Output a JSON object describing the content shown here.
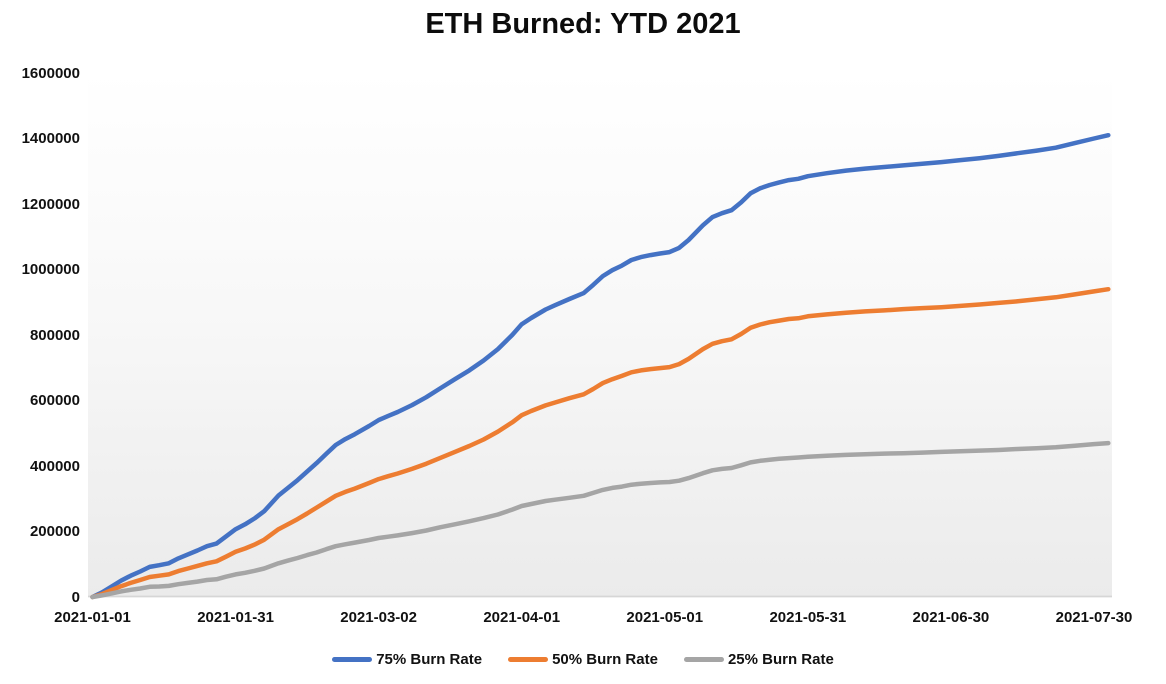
{
  "chart_data": {
    "type": "line",
    "title": "ETH Burned: YTD 2021",
    "xlabel": "",
    "ylabel": "",
    "grid": false,
    "legend_position": "bottom",
    "ylim": [
      0,
      1600000
    ],
    "y_ticks": [
      0,
      200000,
      400000,
      600000,
      800000,
      1000000,
      1200000,
      1400000,
      1600000
    ],
    "y_tick_labels": [
      "0",
      "200000",
      "400000",
      "600000",
      "800000",
      "1000000",
      "1200000",
      "1400000",
      "1600000"
    ],
    "x_ticks": [
      {
        "label": "2021-01-01",
        "day": 0
      },
      {
        "label": "2021-01-31",
        "day": 30
      },
      {
        "label": "2021-03-02",
        "day": 60
      },
      {
        "label": "2021-04-01",
        "day": 90
      },
      {
        "label": "2021-05-01",
        "day": 120
      },
      {
        "label": "2021-05-31",
        "day": 150
      },
      {
        "label": "2021-06-30",
        "day": 180
      },
      {
        "label": "2021-07-30",
        "day": 210
      }
    ],
    "x_domain_days": [
      0,
      213
    ],
    "days": [
      0,
      2,
      4,
      6,
      8,
      10,
      12,
      14,
      16,
      18,
      20,
      22,
      24,
      26,
      28,
      30,
      32,
      34,
      36,
      39,
      41,
      43,
      45,
      47,
      49,
      51,
      53,
      55,
      58,
      60,
      62,
      64,
      67,
      70,
      73,
      76,
      79,
      82,
      85,
      88,
      90,
      92,
      95,
      97,
      100,
      103,
      105,
      107,
      109,
      111,
      113,
      115,
      117,
      119,
      121,
      123,
      125,
      128,
      130,
      132,
      134,
      136,
      138,
      140,
      142,
      144,
      146,
      148,
      150,
      154,
      158,
      162,
      166,
      170,
      174,
      178,
      182,
      186,
      190,
      194,
      198,
      202,
      206,
      210,
      213
    ],
    "series": [
      {
        "name": "75% Burn Rate",
        "color": "#4472C4",
        "values": [
          0,
          14000,
          32000,
          50000,
          65000,
          78000,
          92000,
          97000,
          103000,
          118000,
          130000,
          142000,
          155000,
          163000,
          185000,
          207000,
          222000,
          240000,
          262000,
          310000,
          333000,
          357000,
          383000,
          409000,
          437000,
          464000,
          482000,
          497000,
          522000,
          540000,
          553000,
          565000,
          586000,
          610000,
          638000,
          665000,
          692000,
          722000,
          757000,
          800000,
          833000,
          852000,
          878000,
          891000,
          910000,
          928000,
          953000,
          980000,
          998000,
          1012000,
          1029000,
          1038000,
          1044000,
          1049000,
          1053000,
          1066000,
          1090000,
          1135000,
          1160000,
          1172000,
          1181000,
          1205000,
          1233000,
          1248000,
          1258000,
          1266000,
          1273000,
          1277000,
          1285000,
          1294000,
          1302000,
          1308000,
          1313000,
          1318000,
          1323000,
          1328000,
          1334000,
          1340000,
          1347000,
          1355000,
          1363000,
          1372000,
          1386000,
          1400000,
          1410000
        ]
      },
      {
        "name": "50% Burn Rate",
        "color": "#ED7D31",
        "values": [
          0,
          9000,
          21000,
          33000,
          43000,
          52000,
          61000,
          65000,
          69000,
          79000,
          87000,
          95000,
          103000,
          109000,
          123000,
          138000,
          148000,
          160000,
          175000,
          207000,
          222000,
          238000,
          255000,
          273000,
          291000,
          309000,
          321000,
          331000,
          348000,
          360000,
          369000,
          377000,
          391000,
          407000,
          425000,
          443000,
          461000,
          481000,
          505000,
          533000,
          555000,
          568000,
          585000,
          594000,
          607000,
          619000,
          635000,
          653000,
          665000,
          675000,
          686000,
          692000,
          696000,
          699000,
          702000,
          711000,
          727000,
          757000,
          773000,
          781000,
          787000,
          803000,
          822000,
          832000,
          839000,
          844000,
          849000,
          851000,
          857000,
          863000,
          868000,
          872000,
          875000,
          879000,
          882000,
          885000,
          889000,
          893000,
          898000,
          903000,
          909000,
          915000,
          924000,
          933000,
          940000
        ]
      },
      {
        "name": "25% Burn Rate",
        "color": "#A5A5A5",
        "values": [
          0,
          5000,
          11000,
          17000,
          22000,
          26000,
          31000,
          32000,
          34000,
          39000,
          43000,
          47000,
          52000,
          54000,
          62000,
          69000,
          74000,
          80000,
          87000,
          103000,
          111000,
          119000,
          128000,
          136000,
          146000,
          155000,
          161000,
          166000,
          174000,
          180000,
          184000,
          188000,
          195000,
          203000,
          213000,
          222000,
          231000,
          241000,
          252000,
          267000,
          278000,
          284000,
          293000,
          297000,
          303000,
          309000,
          318000,
          327000,
          333000,
          337000,
          343000,
          346000,
          348000,
          350000,
          351000,
          355000,
          363000,
          378000,
          387000,
          391000,
          394000,
          402000,
          411000,
          416000,
          419000,
          422000,
          424000,
          426000,
          428000,
          431000,
          434000,
          436000,
          438000,
          439000,
          441000,
          443000,
          445000,
          447000,
          449000,
          452000,
          454000,
          457000,
          462000,
          467000,
          470000
        ]
      }
    ],
    "plot_background_top_color": "#ffffff",
    "plot_background_bottom_color": "#ebebeb",
    "axis_line_color": "#d6d6d6"
  }
}
